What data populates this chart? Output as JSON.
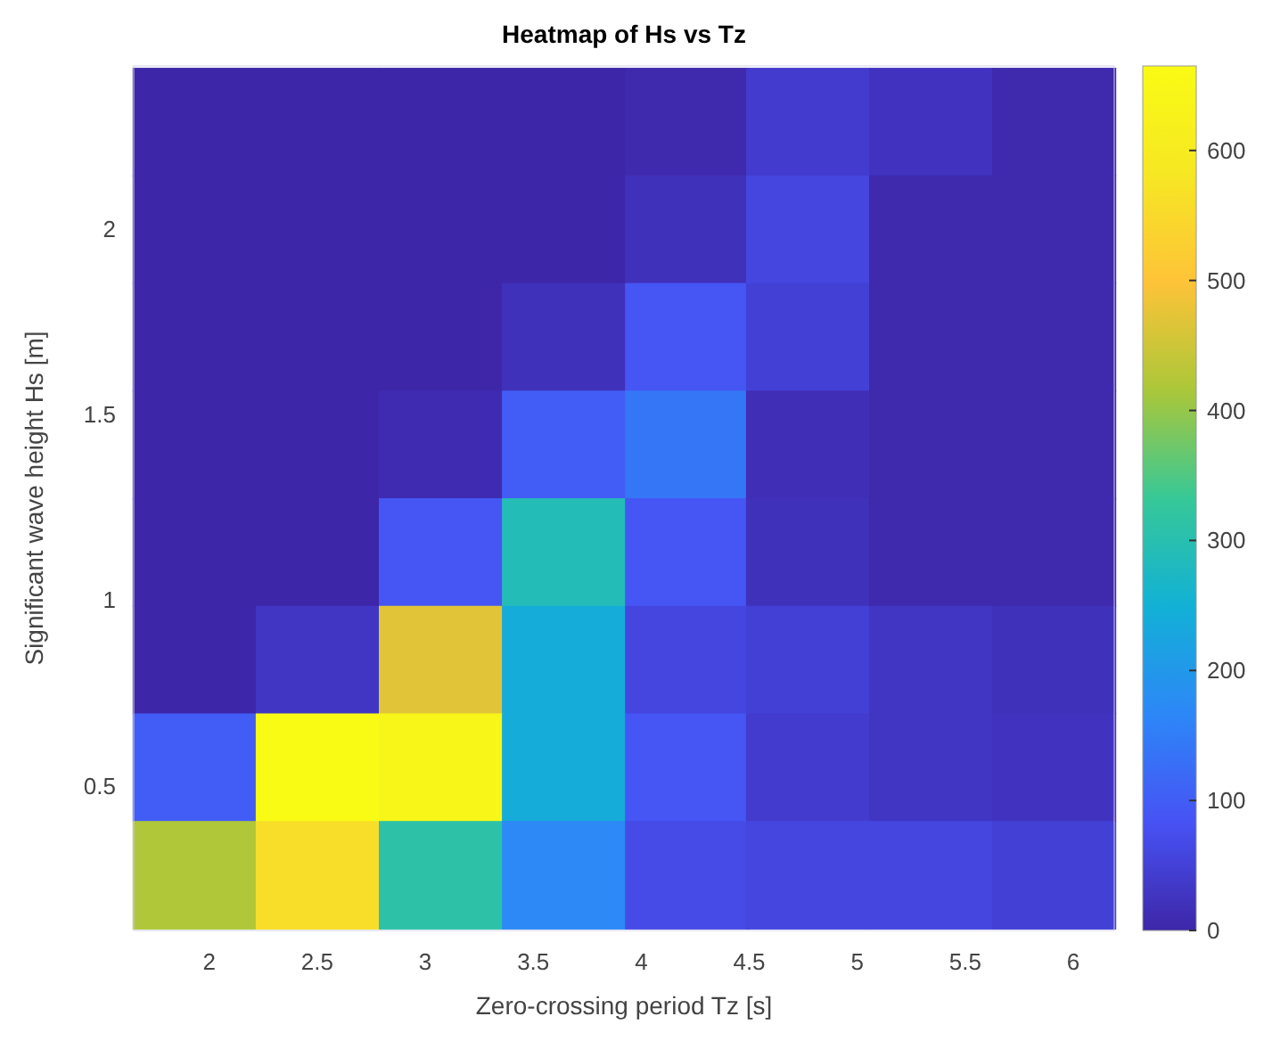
{
  "chart_data": {
    "type": "heatmap",
    "title": "Heatmap of Hs vs Tz",
    "xlabel": "Zero-crossing period Tz [s]",
    "ylabel": "Significant wave height Hs [m]",
    "x": [
      1.93,
      2.5,
      3.07,
      3.64,
      4.21,
      4.77,
      5.34,
      5.91
    ],
    "y": [
      2.29,
      2.0,
      1.71,
      1.42,
      1.13,
      0.84,
      0.55,
      0.26
    ],
    "xlim": [
      1.65,
      6.19
    ],
    "xticks": [
      2,
      2.5,
      3,
      3.5,
      4,
      4.5,
      5,
      5.5,
      6
    ],
    "ylim": [
      0.11,
      2.44
    ],
    "yticks": [
      0.5,
      1,
      1.5,
      2
    ],
    "cells": [
      [
        0,
        0,
        0,
        0,
        5,
        40,
        25,
        5
      ],
      [
        0,
        0,
        0,
        0,
        20,
        60,
        5,
        5
      ],
      [
        0,
        0,
        0,
        20,
        90,
        50,
        5,
        5
      ],
      [
        0,
        0,
        10,
        100,
        140,
        15,
        5,
        5
      ],
      [
        0,
        0,
        90,
        290,
        90,
        20,
        5,
        5
      ],
      [
        0,
        30,
        470,
        240,
        60,
        50,
        30,
        20
      ],
      [
        100,
        665,
        645,
        240,
        90,
        40,
        30,
        25
      ],
      [
        420,
        560,
        310,
        170,
        70,
        60,
        60,
        50
      ]
    ],
    "clim": [
      0,
      665
    ],
    "cticks": [
      0,
      100,
      200,
      300,
      400,
      500,
      600
    ]
  }
}
